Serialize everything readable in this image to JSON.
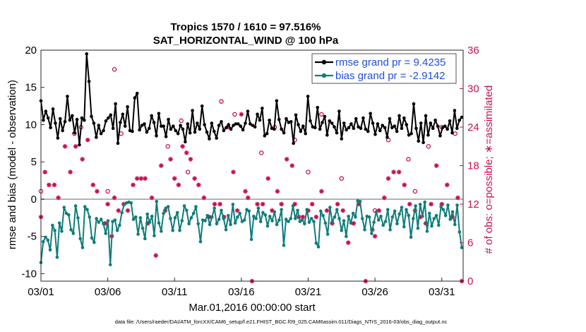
{
  "chart_data": {
    "type": "line",
    "title": "Tropics 1570 / 1610 = 97.516%",
    "subtitle": "SAT_HORIZONTAL_WIND @ 100 hPa",
    "xlabel": "Mar.01,2016 00:00:00 start",
    "ylabel": "rmse and bias (model - observation)",
    "y2label": "# of obs: o=possible; ∗=assimilated",
    "footer": "data file: /Users/raeder/DAI/ATM_forcXX/CAM6_setup/f.e21.FHIST_BGC.f09_025.CAM6assim.011/Diags_NTrS_2016-03/obs_diag_output.nc",
    "xlim": [
      0,
      31.6
    ],
    "ylim": [
      -11,
      20
    ],
    "y2lim": [
      0,
      36
    ],
    "x_ticks": [
      0,
      5,
      10,
      15,
      20,
      25,
      30
    ],
    "x_tick_labels": [
      "03/01",
      "03/06",
      "03/11",
      "03/16",
      "03/21",
      "03/26",
      "03/31"
    ],
    "y_ticks": [
      -10,
      -5,
      0,
      5,
      10,
      15,
      20
    ],
    "y_tick_labels": [
      "-10",
      "-5",
      "0",
      "5",
      "10",
      "15",
      "20"
    ],
    "y2_ticks": [
      0,
      6,
      12,
      18,
      24,
      30,
      36
    ],
    "y2_tick_labels": [
      "0",
      "6",
      "12",
      "18",
      "24",
      "30",
      "36"
    ],
    "colors": {
      "rmse": "#000000",
      "bias": "#0f7d7a",
      "nobs": "#c8104f",
      "legend_text": "#1f4fd6",
      "zero_line": "#b3b3b3"
    },
    "series": [
      {
        "name": "rmse grand pr = 9.4235",
        "axis": "left",
        "values": [
          13.2,
          10.6,
          11.8,
          10.9,
          9.6,
          12.1,
          10.2,
          8.2,
          10.8,
          9.2,
          10.4,
          13.8,
          10.6,
          11.2,
          8.9,
          10.7,
          7.3,
          10.9,
          10.6,
          19.5,
          15.8,
          11.1,
          10.2,
          8.3,
          9.9,
          8.8,
          9.2,
          10.5,
          10.9,
          11.3,
          9.5,
          12.8,
          7.5,
          10.3,
          11.4,
          9.8,
          12.4,
          9.2,
          9.1,
          13.6,
          14.2,
          9.3,
          9.9,
          10.1,
          9.0,
          9.5,
          11.2,
          10.3,
          8.5,
          11.5,
          9.8,
          9.8,
          8.4,
          10.7,
          9.4,
          9.8,
          9.2,
          8.8,
          9.9,
          9.4,
          7.7,
          10.1,
          8.9,
          11.9,
          9.0,
          10.2,
          9.4,
          12.5,
          10.0,
          9.0,
          8.1,
          10.2,
          9.1,
          8.2,
          9.9,
          10.4,
          9.2,
          9.6,
          10.0,
          9.4,
          9.9,
          10.1,
          10.1,
          9.8,
          9.3,
          10.2,
          11.8,
          10.1,
          9.9,
          9.7,
          11.4,
          10.6,
          12.2,
          8.5,
          8.8,
          10.6,
          9.5,
          9.4,
          13.2,
          10.7,
          9.4,
          8.9,
          10.8,
          10.3,
          10.4,
          7.5,
          11.3,
          10.0,
          9.1,
          9.8,
          8.8,
          13.8,
          10.5,
          9.7,
          9.6,
          12.3,
          9.4,
          10.3,
          11.1,
          8.6,
          10.5,
          10.2,
          9.7,
          8.9,
          11.8,
          8.1,
          10.2,
          9.3,
          9.6,
          10.1,
          9.5,
          10.8,
          9.7,
          9.5,
          10.9,
          9.4,
          9.1,
          11.5,
          10.2,
          8.7,
          10.1,
          9.2,
          9.9,
          9.6,
          8.3,
          10.8,
          9.6,
          9.8,
          9.1,
          11.2,
          9.5,
          10.9,
          10.0,
          8.6,
          8.8,
          12.8,
          9.5,
          7.8,
          10.2,
          7.6,
          11.2,
          8.6,
          10.2,
          9.5,
          10.6,
          9.8,
          8.5,
          9.6,
          9.8,
          9.4,
          10.5,
          8.9,
          11.9,
          9.5,
          10.6,
          11.0
        ]
      },
      {
        "name": "bias grand pr = -2.9142",
        "axis": "left",
        "values": [
          -8.5,
          -5.7,
          -5.1,
          -5.5,
          -6.8,
          -3.5,
          -4.2,
          -7.8,
          -3.2,
          -4.3,
          -1.1,
          -1.9,
          -2.1,
          -4.1,
          -4.6,
          -0.9,
          -2.5,
          -5.3,
          -6.5,
          -1.0,
          -1.4,
          -2.4,
          -5.2,
          -5.8,
          -2.6,
          -3.1,
          -2.7,
          -3.3,
          -4.6,
          -2.9,
          -8.8,
          -3.0,
          -2.8,
          -4.2,
          -3.5,
          -1.8,
          -0.7,
          -0.5,
          -0.4,
          -0.5,
          -2.7,
          -2.4,
          -4.7,
          -2.5,
          -3.9,
          -5.3,
          -2.0,
          -3.1,
          -2.3,
          -4.9,
          -0.3,
          -3.2,
          -4.3,
          -1.9,
          -1.2,
          -1.0,
          -2.6,
          -4.2,
          -2.5,
          -1.8,
          -4.2,
          -2.9,
          -0.9,
          -1.5,
          -3.3,
          -2.5,
          -1.9,
          -1.0,
          -3.3,
          -5.7,
          -2.8,
          -2.9,
          -2.2,
          -3.4,
          -2.4,
          -1.2,
          -3.3,
          -2.7,
          -1.5,
          -2.6,
          -4.1,
          -2.2,
          -3.4,
          -0.7,
          -3.2,
          -2.4,
          -1.9,
          -3.0,
          -2.8,
          -1.4,
          -1.6,
          -5.4,
          -2.3,
          -2.6,
          -1.2,
          -3.0,
          -1.8,
          -2.1,
          -3.6,
          -2.3,
          -2.9,
          -1.7,
          -3.4,
          -2.8,
          -1.4,
          -6.2,
          -2.7,
          -3.0,
          -2.6,
          -0.9,
          -2.6,
          -1.5,
          -3.0,
          -2.8,
          -3.3,
          -1.4,
          -3.1,
          -2.6,
          -3.0,
          -5.9,
          -6.4,
          -1.6,
          -2.2,
          -3.2,
          -4.7,
          -1.1,
          -3.0,
          -2.4,
          -1.4,
          -2.6,
          -4.2,
          -2.9,
          -5.0,
          -2.3,
          -3.2,
          -1.9,
          -2.4,
          -0.2,
          -0.3,
          -2.6,
          -4.1,
          -2.3,
          -2.4,
          -4.6,
          -3.1,
          -1.7,
          -2.8,
          -2.3,
          -3.5,
          -3.0,
          -1.4,
          -4.1,
          -2.4,
          -1.6,
          -3.3,
          -2.0,
          -1.1,
          -3.7,
          -1.4,
          -2.2,
          -5.1,
          -2.6,
          -0.9,
          -3.9,
          -0.7,
          -2.3,
          -0.4,
          -4.3,
          -1.9,
          -3.6,
          -2.6,
          -2.2,
          -3.5,
          -1.0,
          -1.4,
          -2.2,
          -0.8,
          -2.7,
          -1.7,
          -3.4,
          -0.8,
          -4.4,
          -6.5
        ]
      }
    ],
    "obs_possible": [
      {
        "x": 0.0,
        "y": 14
      },
      {
        "x": 2.5,
        "y": 23
      },
      {
        "x": 3.0,
        "y": 24
      },
      {
        "x": 5.0,
        "y": 14
      },
      {
        "x": 5.5,
        "y": 33
      },
      {
        "x": 6.0,
        "y": 23
      },
      {
        "x": 9.5,
        "y": 21
      },
      {
        "x": 10.5,
        "y": 25
      },
      {
        "x": 11.0,
        "y": 17
      },
      {
        "x": 13.5,
        "y": 28
      },
      {
        "x": 14.5,
        "y": 26
      },
      {
        "x": 16.5,
        "y": 20
      },
      {
        "x": 17.5,
        "y": 24
      },
      {
        "x": 19.0,
        "y": 22
      },
      {
        "x": 20.0,
        "y": 17
      },
      {
        "x": 21.0,
        "y": 26
      },
      {
        "x": 22.5,
        "y": 16
      },
      {
        "x": 25.0,
        "y": 11
      },
      {
        "x": 26.0,
        "y": 22
      },
      {
        "x": 27.5,
        "y": 19
      },
      {
        "x": 28.0,
        "y": 14
      },
      {
        "x": 29.0,
        "y": 21
      },
      {
        "x": 30.0,
        "y": 24
      },
      {
        "x": 31.0,
        "y": 23
      }
    ],
    "obs_assimilated": [
      {
        "x": 0.0,
        "y": 10
      },
      {
        "x": 0.3,
        "y": 17
      },
      {
        "x": 0.6,
        "y": 15
      },
      {
        "x": 1.0,
        "y": 15
      },
      {
        "x": 1.3,
        "y": 13
      },
      {
        "x": 1.8,
        "y": 21
      },
      {
        "x": 2.2,
        "y": 17
      },
      {
        "x": 2.6,
        "y": 21
      },
      {
        "x": 3.1,
        "y": 19
      },
      {
        "x": 3.5,
        "y": 22
      },
      {
        "x": 3.9,
        "y": 15
      },
      {
        "x": 4.2,
        "y": 14
      },
      {
        "x": 4.8,
        "y": 9
      },
      {
        "x": 5.0,
        "y": 12
      },
      {
        "x": 5.3,
        "y": 7
      },
      {
        "x": 5.5,
        "y": 13
      },
      {
        "x": 5.8,
        "y": 11
      },
      {
        "x": 6.2,
        "y": 12
      },
      {
        "x": 6.5,
        "y": 11
      },
      {
        "x": 6.9,
        "y": 15
      },
      {
        "x": 7.2,
        "y": 16
      },
      {
        "x": 7.5,
        "y": 16
      },
      {
        "x": 7.8,
        "y": 16
      },
      {
        "x": 8.0,
        "y": 9
      },
      {
        "x": 8.3,
        "y": 13
      },
      {
        "x": 8.6,
        "y": 4
      },
      {
        "x": 9.0,
        "y": 18
      },
      {
        "x": 9.3,
        "y": 11
      },
      {
        "x": 9.7,
        "y": 19
      },
      {
        "x": 10.0,
        "y": 16
      },
      {
        "x": 10.3,
        "y": 15
      },
      {
        "x": 10.6,
        "y": 21
      },
      {
        "x": 10.9,
        "y": 20
      },
      {
        "x": 11.2,
        "y": 19
      },
      {
        "x": 11.5,
        "y": 16
      },
      {
        "x": 11.8,
        "y": 15
      },
      {
        "x": 12.2,
        "y": 13
      },
      {
        "x": 12.6,
        "y": 10
      },
      {
        "x": 13.0,
        "y": 12
      },
      {
        "x": 13.4,
        "y": 12
      },
      {
        "x": 13.7,
        "y": 10
      },
      {
        "x": 14.0,
        "y": 24
      },
      {
        "x": 14.4,
        "y": 17
      },
      {
        "x": 14.7,
        "y": 11
      },
      {
        "x": 15.0,
        "y": 26
      },
      {
        "x": 15.3,
        "y": 14
      },
      {
        "x": 15.5,
        "y": 13
      },
      {
        "x": 15.8,
        "y": 0
      },
      {
        "x": 16.2,
        "y": 12
      },
      {
        "x": 16.6,
        "y": 12
      },
      {
        "x": 17.0,
        "y": 16
      },
      {
        "x": 17.3,
        "y": 11
      },
      {
        "x": 17.7,
        "y": 14
      },
      {
        "x": 18.0,
        "y": 12
      },
      {
        "x": 18.4,
        "y": 19
      },
      {
        "x": 18.8,
        "y": 18
      },
      {
        "x": 19.0,
        "y": 12
      },
      {
        "x": 19.3,
        "y": 10
      },
      {
        "x": 19.6,
        "y": 10
      },
      {
        "x": 20.0,
        "y": 11
      },
      {
        "x": 20.3,
        "y": 12
      },
      {
        "x": 20.6,
        "y": 10
      },
      {
        "x": 21.0,
        "y": 14
      },
      {
        "x": 21.4,
        "y": 11
      },
      {
        "x": 21.8,
        "y": 9
      },
      {
        "x": 22.2,
        "y": 12
      },
      {
        "x": 22.6,
        "y": 11
      },
      {
        "x": 23.0,
        "y": 6
      },
      {
        "x": 23.4,
        "y": 9
      },
      {
        "x": 23.8,
        "y": 12
      },
      {
        "x": 24.3,
        "y": 0
      },
      {
        "x": 24.8,
        "y": 8
      },
      {
        "x": 25.0,
        "y": 7
      },
      {
        "x": 25.3,
        "y": 11
      },
      {
        "x": 25.7,
        "y": 13
      },
      {
        "x": 26.0,
        "y": 16
      },
      {
        "x": 26.4,
        "y": 17
      },
      {
        "x": 26.8,
        "y": 17
      },
      {
        "x": 27.2,
        "y": 15
      },
      {
        "x": 27.6,
        "y": 12
      },
      {
        "x": 28.0,
        "y": 11
      },
      {
        "x": 28.4,
        "y": 10
      },
      {
        "x": 28.8,
        "y": 9
      },
      {
        "x": 29.2,
        "y": 12
      },
      {
        "x": 29.6,
        "y": 18
      },
      {
        "x": 30.0,
        "y": 12
      },
      {
        "x": 30.4,
        "y": 15
      },
      {
        "x": 30.8,
        "y": 10
      },
      {
        "x": 31.2,
        "y": 13
      },
      {
        "x": 31.5,
        "y": 0
      }
    ]
  }
}
